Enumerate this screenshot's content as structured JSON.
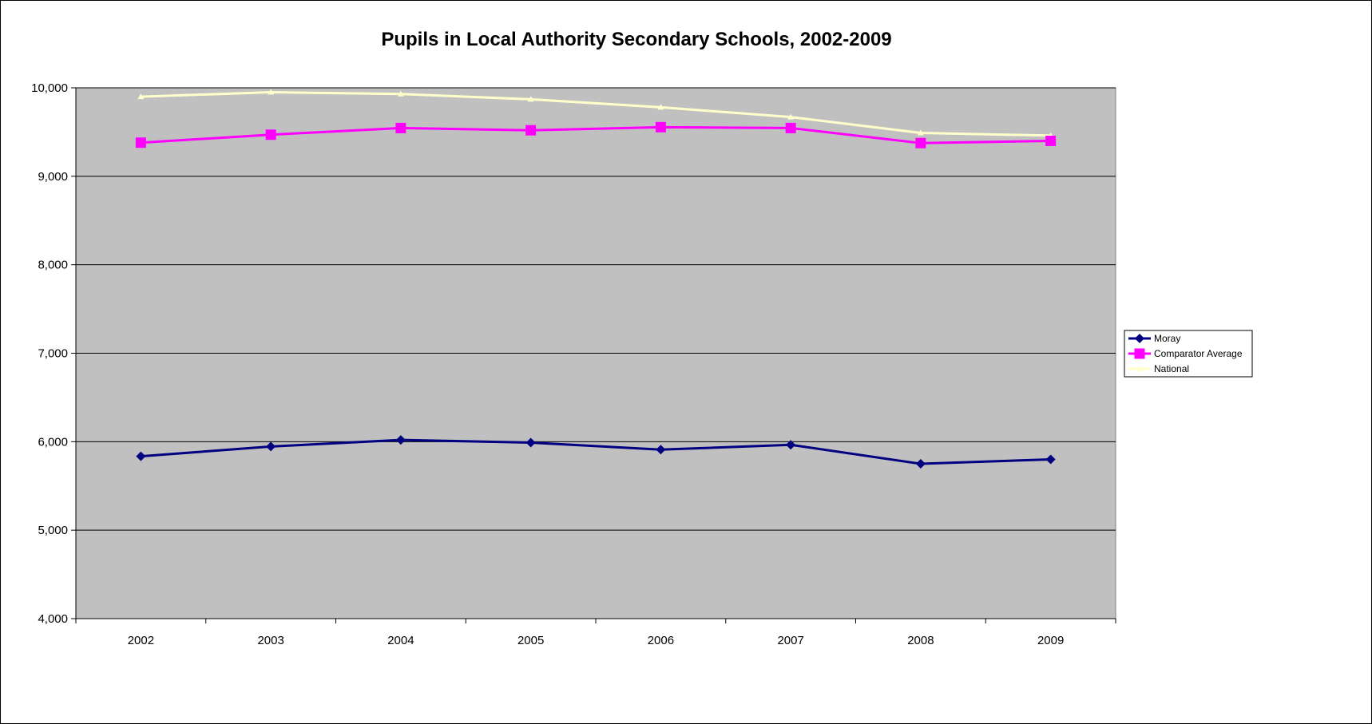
{
  "chart_data": {
    "type": "line",
    "title": "Pupils in Local Authority Secondary Schools, 2002-2009",
    "xlabel": "",
    "ylabel": "",
    "categories": [
      "2002",
      "2003",
      "2004",
      "2005",
      "2006",
      "2007",
      "2008",
      "2009"
    ],
    "ylim": [
      4000,
      10000
    ],
    "yticks": [
      4000,
      5000,
      6000,
      7000,
      8000,
      9000,
      10000
    ],
    "ytick_labels": [
      "4,000",
      "5,000",
      "6,000",
      "7,000",
      "8,000",
      "9,000",
      "10,000"
    ],
    "grid": true,
    "plot_background": "#c0c0c0",
    "legend_position": "right",
    "series": [
      {
        "name": "Moray",
        "color": "#000080",
        "marker": "diamond",
        "values": [
          5835,
          5945,
          6020,
          5990,
          5910,
          5965,
          5750,
          5800
        ]
      },
      {
        "name": "Comparator Average",
        "color": "#ff00ff",
        "marker": "square",
        "values": [
          9380,
          9470,
          9545,
          9520,
          9555,
          9545,
          9375,
          9400
        ]
      },
      {
        "name": "National",
        "color": "#ffffcc",
        "marker": "triangle",
        "values": [
          9900,
          9950,
          9930,
          9870,
          9780,
          9670,
          9490,
          9460
        ]
      }
    ]
  }
}
